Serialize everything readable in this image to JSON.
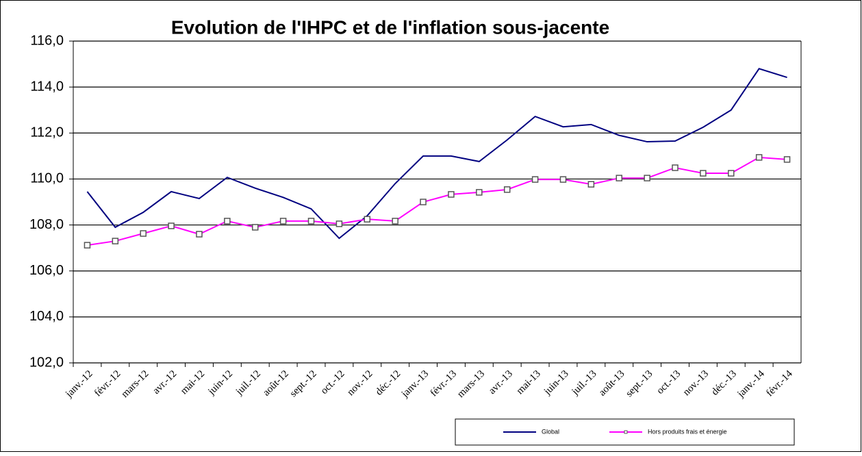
{
  "chart_data": {
    "type": "line",
    "title": "Evolution de l'IHPC et de l'inflation sous-jacente",
    "categories": [
      "janv.-12",
      "févr.-12",
      "mars-12",
      "avr.-12",
      "mai-12",
      "juin-12",
      "juil.-12",
      "août-12",
      "sept.-12",
      "oct.-12",
      "nov.-12",
      "déc.-12",
      "janv.-13",
      "févr.-13",
      "mars-13",
      "avr.-13",
      "mai-13",
      "juin-13",
      "juil.-13",
      "août-13",
      "sept.-13",
      "oct.-13",
      "nov.-13",
      "déc.-13",
      "janv.-14",
      "févr.-14"
    ],
    "series": [
      {
        "name": "Global",
        "color": "#000080",
        "marker": false,
        "values": [
          109.45,
          107.9,
          108.55,
          109.45,
          109.15,
          110.07,
          109.6,
          109.2,
          108.7,
          107.42,
          108.4,
          109.8,
          111.0,
          111.0,
          110.76,
          111.7,
          112.72,
          112.27,
          112.37,
          111.9,
          111.62,
          111.65,
          112.25,
          113.0,
          114.8,
          114.42
        ]
      },
      {
        "name": "Hors produits frais et énergie",
        "color": "#ff00ff",
        "marker": true,
        "values": [
          107.12,
          107.3,
          107.63,
          107.96,
          107.6,
          108.17,
          107.9,
          108.17,
          108.17,
          108.05,
          108.25,
          108.17,
          109.0,
          109.33,
          109.42,
          109.54,
          109.98,
          109.98,
          109.77,
          110.04,
          110.04,
          110.49,
          110.25,
          110.25,
          110.94,
          110.85
        ]
      }
    ],
    "ylim": [
      102,
      116
    ],
    "yticks": [
      {
        "value": 102,
        "label": "102,0"
      },
      {
        "value": 104,
        "label": "104,0"
      },
      {
        "value": 106,
        "label": "106,0"
      },
      {
        "value": 108,
        "label": "108,0"
      },
      {
        "value": 110,
        "label": "110,0"
      },
      {
        "value": 112,
        "label": "112,0"
      },
      {
        "value": 114,
        "label": "114,0"
      },
      {
        "value": 116,
        "label": "116,0"
      }
    ],
    "grid": true,
    "legend": "bottom-right"
  }
}
